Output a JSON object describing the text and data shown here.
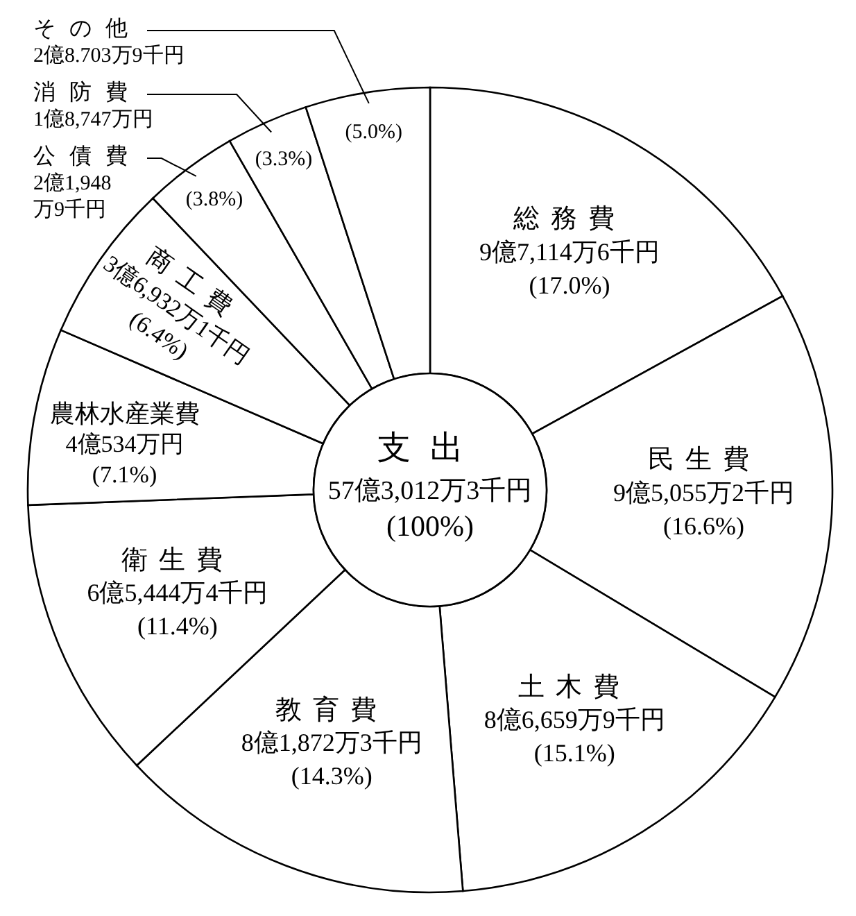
{
  "chart_data": {
    "type": "donut",
    "title": "支出",
    "subtitle": "57億3,012万3千円",
    "annotations": [
      "(100%)"
    ],
    "categories": [
      "総務費\n9億7,114万6千円",
      "民生費\n9億5,055万2千円",
      "土木費\n8億6,659万9千円",
      "教育費\n8億1,872万3千円",
      "衛生費\n6億5,444万4千円",
      "農林水産業費\n4億534万円",
      "商工費\n3億6,932万1千円",
      "公債費\n2億1,948\n万9千円",
      "消防費\n1億8,747万円",
      "その他\n2億8.703万9千円"
    ],
    "values": [
      17.0,
      16.6,
      15.1,
      14.3,
      11.4,
      7.1,
      6.4,
      3.8,
      3.3,
      5.0
    ],
    "value_labels": [
      "(17.0%)",
      "(16.6%)",
      "(15.1%)",
      "(14.3%)",
      "(11.4%)",
      "(7.1%)",
      "(6.4%)",
      "(3.8%)",
      "(3.3%)",
      "(5.0%)"
    ],
    "colors": [
      "#ffffff",
      "#ffffff",
      "#ffffff",
      "#ffffff",
      "#ffffff",
      "#ffffff",
      "#ffffff",
      "#ffffff",
      "#ffffff",
      "#ffffff"
    ]
  }
}
